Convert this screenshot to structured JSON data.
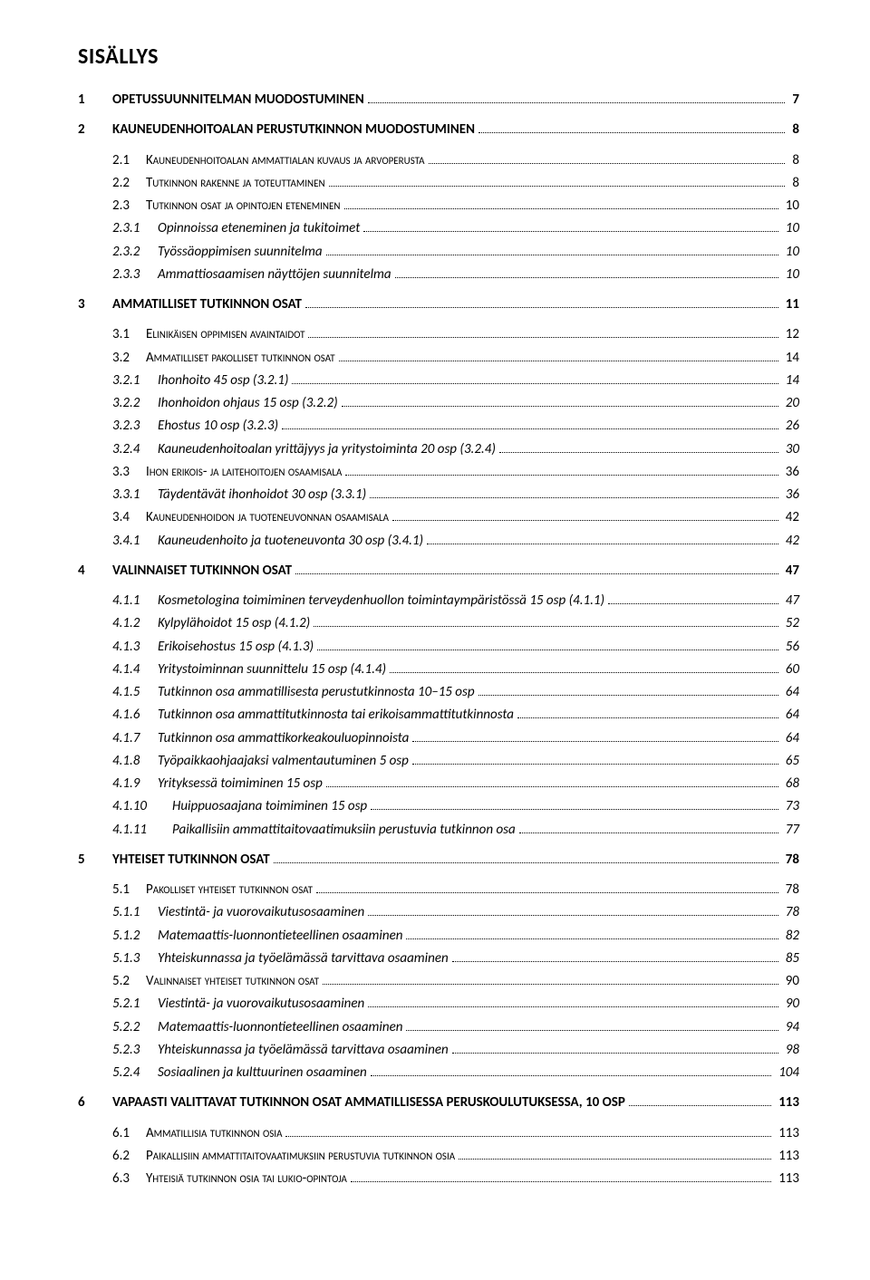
{
  "title": "SISÄLLYS",
  "colors": {
    "text": "#000000",
    "background": "#ffffff",
    "dots": "#000000"
  },
  "typography": {
    "title_fontsize_pt": 18,
    "body_fontsize_pt": 11.5,
    "font_family": "Calibri"
  },
  "entries": [
    {
      "level": 0,
      "num": "1",
      "label": "OPETUSSUUNNITELMAN MUODOSTUMINEN",
      "page": "7"
    },
    {
      "level": 0,
      "num": "2",
      "label": "KAUNEUDENHOITOALAN PERUSTUTKINNON MUODOSTUMINEN",
      "page": "8"
    },
    {
      "level": 1,
      "num": "2.1",
      "label": "Kauneudenhoitoalan ammattialan kuvaus ja arvoperusta",
      "page": "8"
    },
    {
      "level": 1,
      "num": "2.2",
      "label": "Tutkinnon rakenne ja toteuttaminen",
      "page": "8"
    },
    {
      "level": 1,
      "num": "2.3",
      "label": "Tutkinnon osat ja opintojen eteneminen",
      "page": "10"
    },
    {
      "level": 2,
      "num": "2.3.1",
      "label": "Opinnoissa eteneminen ja tukitoimet",
      "page": "10"
    },
    {
      "level": 2,
      "num": "2.3.2",
      "label": "Työssäoppimisen suunnitelma",
      "page": "10"
    },
    {
      "level": 2,
      "num": "2.3.3",
      "label": "Ammattiosaamisen näyttöjen suunnitelma",
      "page": "10"
    },
    {
      "level": 0,
      "num": "3",
      "label": "AMMATILLISET TUTKINNON OSAT",
      "page": "11"
    },
    {
      "level": 1,
      "num": "3.1",
      "label": "Elinikäisen oppimisen avaintaidot",
      "page": "12"
    },
    {
      "level": 1,
      "num": "3.2",
      "label": "Ammatilliset pakolliset tutkinnon osat",
      "page": "14"
    },
    {
      "level": 2,
      "num": "3.2.1",
      "label": "Ihonhoito 45 osp (3.2.1)",
      "page": "14"
    },
    {
      "level": 2,
      "num": "3.2.2",
      "label": "Ihonhoidon ohjaus 15 osp (3.2.2)",
      "page": "20"
    },
    {
      "level": 2,
      "num": "3.2.3",
      "label": "Ehostus 10 osp (3.2.3)",
      "page": "26"
    },
    {
      "level": 2,
      "num": "3.2.4",
      "label": "Kauneudenhoitoalan yrittäjyys ja yritystoiminta 20 osp (3.2.4)",
      "page": "30"
    },
    {
      "level": 1,
      "num": "3.3",
      "label": "Ihon erikois- ja laitehoitojen osaamisala",
      "page": "36"
    },
    {
      "level": 2,
      "num": "3.3.1",
      "label": "Täydentävät ihonhoidot 30 osp (3.3.1)",
      "page": "36"
    },
    {
      "level": 1,
      "num": "3.4",
      "label": "Kauneudenhoidon ja tuoteneuvonnan osaamisala",
      "page": "42"
    },
    {
      "level": 2,
      "num": "3.4.1",
      "label": "Kauneudenhoito ja tuoteneuvonta 30 osp (3.4.1)",
      "page": "42"
    },
    {
      "level": 0,
      "num": "4",
      "label": "VALINNAISET TUTKINNON OSAT",
      "page": "47"
    },
    {
      "level": 2,
      "num": "4.1.1",
      "label": "Kosmetologina toimiminen terveydenhuollon toimintaympäristössä 15 osp (4.1.1)",
      "page": "47"
    },
    {
      "level": 2,
      "num": "4.1.2",
      "label": "Kylpylähoidot 15 osp (4.1.2)",
      "page": "52"
    },
    {
      "level": 2,
      "num": "4.1.3",
      "label": "Erikoisehostus 15 osp (4.1.3)",
      "page": "56"
    },
    {
      "level": 2,
      "num": "4.1.4",
      "label": "Yritystoiminnan suunnittelu 15 osp (4.1.4)",
      "page": "60"
    },
    {
      "level": 2,
      "num": "4.1.5",
      "label": "Tutkinnon osa ammatillisesta perustutkinnosta 10–15 osp",
      "page": "64"
    },
    {
      "level": 2,
      "num": "4.1.6",
      "label": "Tutkinnon osa ammattitutkinnosta tai erikoisammattitutkinnosta",
      "page": "64"
    },
    {
      "level": 2,
      "num": "4.1.7",
      "label": "Tutkinnon osa ammattikorkeakouluopinnoista",
      "page": "64"
    },
    {
      "level": 2,
      "num": "4.1.8",
      "label": "Työpaikkaohjaajaksi valmentautuminen 5 osp",
      "page": "65"
    },
    {
      "level": 2,
      "num": "4.1.9",
      "label": "Yrityksessä toimiminen 15 osp",
      "page": "68"
    },
    {
      "level": 2,
      "wide": true,
      "num": "4.1.10",
      "label": "Huippuosaajana toimiminen 15 osp",
      "page": "73"
    },
    {
      "level": 2,
      "wide": true,
      "num": "4.1.11",
      "label": "Paikallisiin ammattitaitovaatimuksiin perustuvia tutkinnon osa",
      "page": "77"
    },
    {
      "level": 0,
      "num": "5",
      "label": "YHTEISET TUTKINNON OSAT",
      "page": "78"
    },
    {
      "level": 1,
      "num": "5.1",
      "label": "Pakolliset yhteiset tutkinnon osat",
      "page": "78"
    },
    {
      "level": 2,
      "num": "5.1.1",
      "label": "Viestintä- ja vuorovaikutusosaaminen",
      "page": "78"
    },
    {
      "level": 2,
      "num": "5.1.2",
      "label": "Matemaattis-luonnontieteellinen osaaminen",
      "page": "82"
    },
    {
      "level": 2,
      "num": "5.1.3",
      "label": "Yhteiskunnassa ja työelämässä tarvittava osaaminen",
      "page": "85"
    },
    {
      "level": 1,
      "num": "5.2",
      "label": "Valinnaiset yhteiset tutkinnon osat",
      "page": "90"
    },
    {
      "level": 2,
      "num": "5.2.1",
      "label": "Viestintä- ja vuorovaikutusosaaminen",
      "page": "90"
    },
    {
      "level": 2,
      "num": "5.2.2",
      "label": "Matemaattis-luonnontieteellinen osaaminen",
      "page": "94"
    },
    {
      "level": 2,
      "num": "5.2.3",
      "label": "Yhteiskunnassa ja työelämässä tarvittava osaaminen",
      "page": "98"
    },
    {
      "level": 2,
      "num": "5.2.4",
      "label": "Sosiaalinen ja kulttuurinen osaaminen",
      "page": "104"
    },
    {
      "level": 0,
      "num": "6",
      "label": "VAPAASTI VALITTAVAT TUTKINNON OSAT AMMATILLISESSA PERUSKOULUTUKSESSA, 10 OSP",
      "page": "113"
    },
    {
      "level": 1,
      "num": "6.1",
      "label": "Ammatillisia tutkinnon osia",
      "page": "113"
    },
    {
      "level": 1,
      "num": "6.2",
      "label": "Paikallisiin ammattitaitovaatimuksiin perustuvia tutkinnon osia",
      "page": "113"
    },
    {
      "level": 1,
      "num": "6.3",
      "label": "Yhteisiä tutkinnon osia tai lukio-opintoja",
      "page": "113"
    }
  ]
}
